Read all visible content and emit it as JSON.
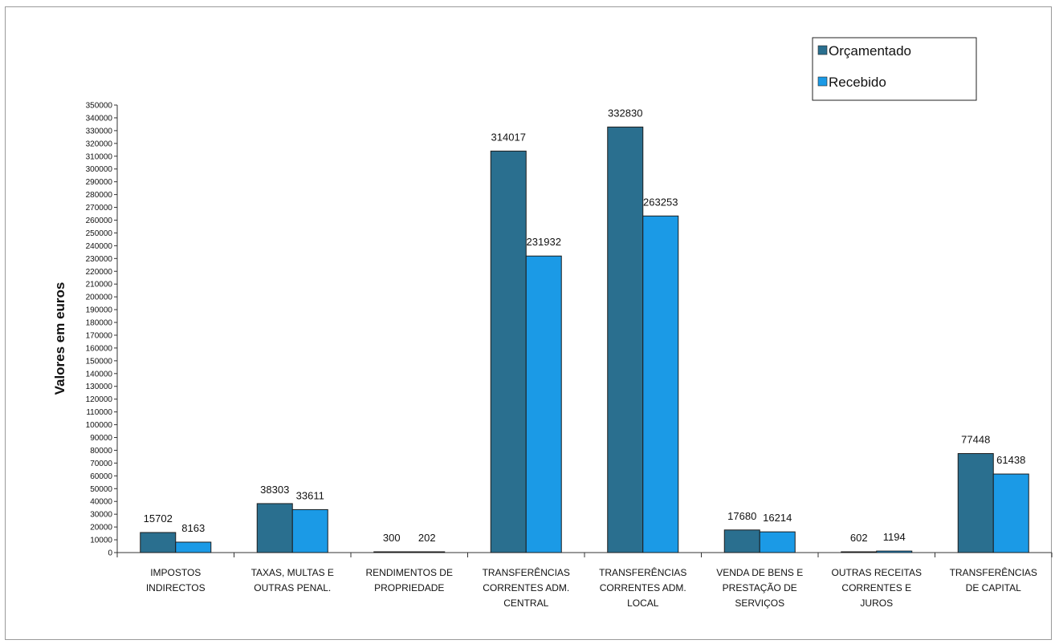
{
  "chart_data": {
    "type": "bar",
    "title": "",
    "xlabel": "",
    "ylabel": "Valores em euros",
    "ylim": [
      0,
      350000
    ],
    "ytick_step": 10000,
    "grid": false,
    "legend_position": "top-right",
    "categories": [
      [
        "IMPOSTOS",
        "INDIRECTOS"
      ],
      [
        "TAXAS, MULTAS E",
        "OUTRAS PENAL."
      ],
      [
        "RENDIMENTOS DE",
        "PROPRIEDADE"
      ],
      [
        "TRANSFERÊNCIAS",
        "CORRENTES ADM.",
        "CENTRAL"
      ],
      [
        "TRANSFERÊNCIAS",
        "CORRENTES ADM.",
        "LOCAL"
      ],
      [
        "VENDA DE BENS E",
        "PRESTAÇÃO DE",
        "SERVIÇOS"
      ],
      [
        "OUTRAS RECEITAS",
        "CORRENTES E",
        "JUROS"
      ],
      [
        "TRANSFERÊNCIAS",
        "DE CAPITAL"
      ]
    ],
    "series": [
      {
        "name": "Orçamentado",
        "color": "#2a6f8f",
        "values": [
          15702,
          38303,
          300,
          314017,
          332830,
          17680,
          602,
          77448
        ]
      },
      {
        "name": "Recebido",
        "color": "#1b9ae6",
        "values": [
          8163,
          33611,
          202,
          231932,
          263253,
          16214,
          1194,
          61438
        ]
      }
    ]
  }
}
